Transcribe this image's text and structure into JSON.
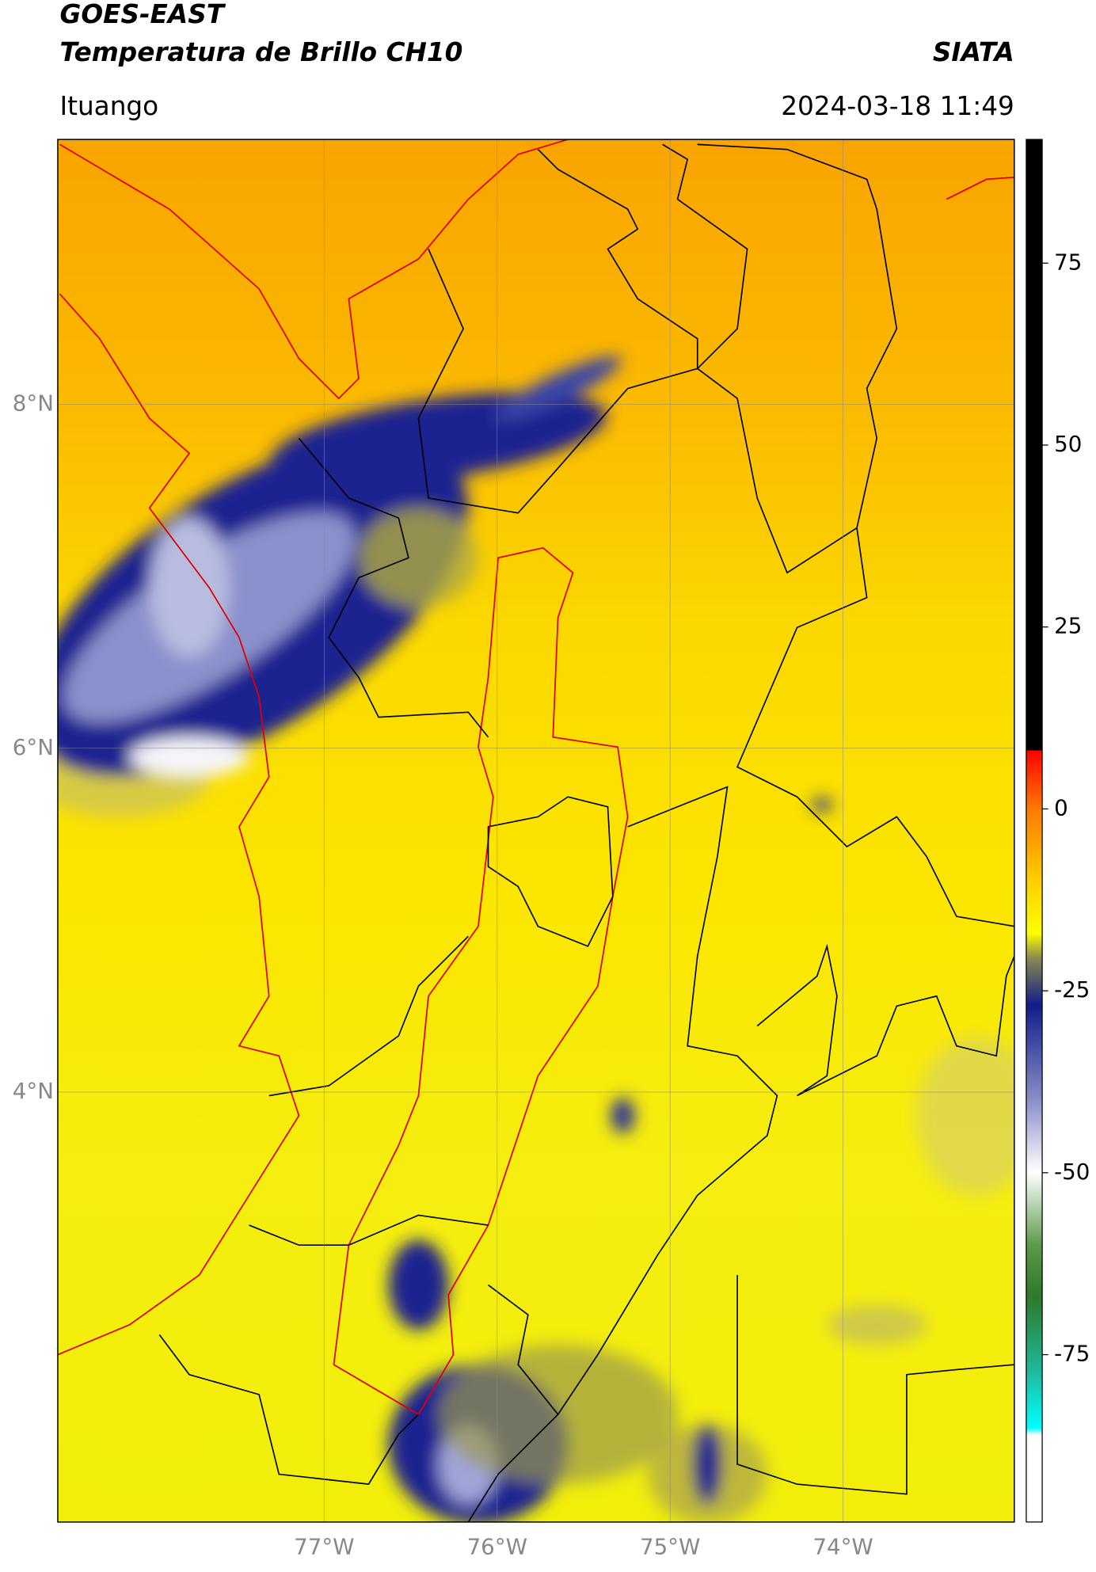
{
  "header": {
    "title": "GOES-EAST",
    "subtitle": "Temperatura de Brillo CH10",
    "source": "SIATA",
    "location": "Ituango",
    "datetime": "2024-03-18 11:49"
  },
  "map": {
    "xlim": [
      -78.54,
      -73.01
    ],
    "ylim": [
      1.5,
      9.54
    ],
    "xticks": [
      {
        "value": -77,
        "label": "77°W"
      },
      {
        "value": -76,
        "label": "76°W"
      },
      {
        "value": -75,
        "label": "75°W"
      },
      {
        "value": -74,
        "label": "74°W"
      }
    ],
    "yticks": [
      {
        "value": 8,
        "label": "8°N"
      },
      {
        "value": 6,
        "label": "6°N"
      },
      {
        "value": 4,
        "label": "4°N"
      }
    ],
    "grid": true
  },
  "colorbar": {
    "lim": [
      -98,
      92
    ],
    "ticks": [
      75,
      50,
      25,
      0,
      -25,
      -50,
      -75
    ]
  }
}
